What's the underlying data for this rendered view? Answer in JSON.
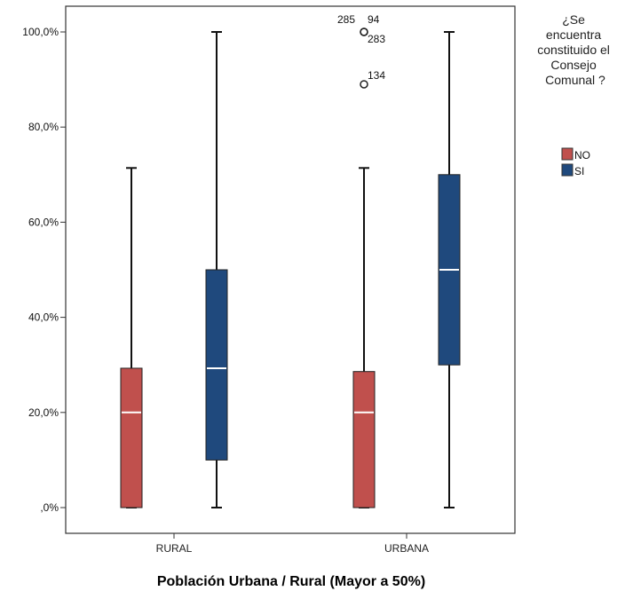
{
  "chart_data": {
    "type": "boxplot",
    "xlabel": "Población Urbana / Rural (Mayor a 50%)",
    "ylabel": "",
    "ylim": [
      0,
      100
    ],
    "y_ticks": [
      {
        "value": 0,
        "label": ",0%"
      },
      {
        "value": 20,
        "label": "20,0%"
      },
      {
        "value": 40,
        "label": "40,0%"
      },
      {
        "value": 60,
        "label": "60,0%"
      },
      {
        "value": 80,
        "label": "80,0%"
      },
      {
        "value": 100,
        "label": "100,0%"
      }
    ],
    "categories": [
      "RURAL",
      "URBANA"
    ],
    "legend": {
      "title": "¿Se encuentra constituido el Consejo Comunal?",
      "title_lines": [
        "¿Se",
        "encuentra",
        "constituido el",
        "Consejo",
        "Comunal ?"
      ],
      "placement": "right"
    },
    "series": [
      {
        "name": "NO",
        "color": "#c0504d",
        "boxes": [
          {
            "category": "RURAL",
            "min": 0,
            "q1": 0,
            "median": 20,
            "q3": 29.3,
            "max": 71.4
          },
          {
            "category": "URBANA",
            "min": 0,
            "q1": 0,
            "median": 20,
            "q3": 28.6,
            "max": 71.4
          }
        ]
      },
      {
        "name": "SI",
        "color": "#1f497d",
        "boxes": [
          {
            "category": "RURAL",
            "min": 0,
            "q1": 10,
            "median": 29.3,
            "q3": 50,
            "max": 100
          },
          {
            "category": "URBANA",
            "min": 0,
            "q1": 30,
            "median": 50,
            "q3": 70,
            "max": 100
          }
        ]
      }
    ],
    "outliers": [
      {
        "category": "URBANA",
        "series": "NO",
        "value": 100,
        "labels": [
          "285",
          "94"
        ]
      },
      {
        "category": "URBANA",
        "series": "NO",
        "value": 100,
        "labels": [
          "283"
        ]
      },
      {
        "category": "URBANA",
        "series": "NO",
        "value": 89,
        "labels": [
          "134"
        ]
      }
    ]
  }
}
